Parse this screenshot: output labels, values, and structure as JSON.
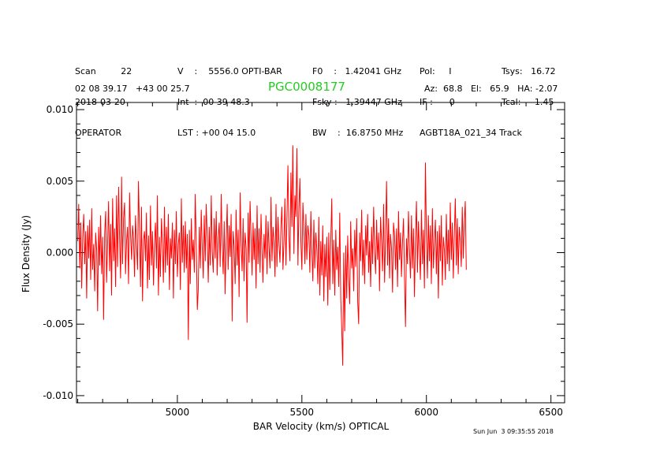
{
  "header": {
    "col1": [
      "Scan         22",
      "2018-03-20",
      "OPERATOR"
    ],
    "col2": [
      "V    :    5556.0 OPTI-BAR",
      "Int  :  00 39 48.3",
      "LST : +00 04 15.0"
    ],
    "col3": [
      "F0    :   1.42041 GHz",
      "Fsky :   1.39447 GHz",
      "BW    :  16.8750 MHz"
    ],
    "col4": [
      "Pol:     I",
      "IF :      0",
      "AGBT18A_021_34 Track"
    ],
    "col5": [
      "Tsys:   16.72",
      "Tcal:     1.45",
      ""
    ],
    "coords": "02 08 39.17   +43 00 25.7",
    "azel": "Az:  68.8   El:   65.9   HA: -2.07"
  },
  "timestamp": "Sun Jun  3 09:35:55 2018",
  "chart_data": {
    "type": "line",
    "title": "PGC0008177",
    "xlabel": "BAR Velocity (km/s) OPTICAL",
    "ylabel": "Flux Density (Jy)",
    "xlim": [
      4595,
      6555
    ],
    "ylim": [
      -0.0105,
      0.0105
    ],
    "xticks": [
      5000,
      5500,
      6000,
      6500
    ],
    "xtick_labels": [
      "5000",
      "5500",
      "6000",
      "6500"
    ],
    "yticks": [
      -0.01,
      -0.005,
      0.0,
      0.005,
      0.01
    ],
    "ytick_labels": [
      "-0.010",
      "-0.005",
      "0.000",
      "0.005",
      "0.010"
    ],
    "series": [
      {
        "name": "spectrum",
        "color": "#ff0000",
        "x_start": 4600,
        "x_step": 4,
        "values": [
          0.0008,
          0.0034,
          -0.0011,
          0.0021,
          -0.0025,
          0.0012,
          0.0027,
          -0.0008,
          0.0015,
          -0.0032,
          0.0019,
          -0.0004,
          0.0023,
          -0.0019,
          0.0031,
          -0.0012,
          0.0006,
          -0.0027,
          0.0014,
          0.0002,
          -0.0041,
          0.0018,
          -0.0009,
          0.0026,
          -0.0015,
          0.0011,
          -0.0047,
          0.0013,
          0.0029,
          -0.0021,
          0.0007,
          0.0036,
          -0.0013,
          0.002,
          -0.003,
          0.0038,
          -0.0006,
          0.0017,
          -0.0024,
          0.004,
          -0.001,
          0.0046,
          0.0011,
          -0.0018,
          0.0053,
          -0.0008,
          0.0024,
          0.0035,
          -0.0015,
          0.0008,
          0.0018,
          -0.0022,
          0.0042,
          0.0013,
          -0.0005,
          0.0019,
          0.001,
          -0.0017,
          0.0026,
          0.0006,
          -0.0012,
          0.005,
          0.0015,
          -0.0024,
          0.0032,
          -0.0034,
          0.0009,
          0.0015,
          -0.0006,
          0.0028,
          -0.0025,
          0.0012,
          -0.0019,
          0.0033,
          -0.0009,
          0.0015,
          -0.0023,
          0.0007,
          0.0021,
          -0.0011,
          0.004,
          -0.003,
          0.0011,
          -0.0017,
          0.0024,
          0.0005,
          -0.0021,
          0.0032,
          -0.0014,
          0.0018,
          -0.0009,
          0.0027,
          -0.0026,
          0.001,
          -0.0004,
          0.0021,
          -0.0032,
          0.0016,
          -0.0008,
          0.0029,
          -0.0017,
          0.0006,
          0.0014,
          -0.0026,
          0.0038,
          -0.0007,
          0.0019,
          -0.0014,
          0.0022,
          -0.0011,
          0.0013,
          -0.0061,
          0.0016,
          -0.0022,
          0.0024,
          -0.0005,
          0.0009,
          -0.0014,
          0.0041,
          0.0006,
          -0.004,
          -0.0026,
          0.0018,
          -0.0011,
          0.003,
          0.0003,
          -0.0018,
          0.0026,
          -0.0006,
          0.0034,
          0.0011,
          -0.0021,
          0.0018,
          -0.0009,
          0.004,
          0.0001,
          -0.0014,
          0.0024,
          -0.0004,
          0.0029,
          -0.0016,
          0.001,
          0.0021,
          -0.001,
          0.0041,
          0.0005,
          -0.0015,
          0.0022,
          -0.0029,
          0.0008,
          0.0034,
          -0.0012,
          0.0019,
          -0.0003,
          0.0027,
          -0.0048,
          0.0015,
          0.0004,
          -0.0022,
          0.003,
          -0.0009,
          0.0016,
          -0.0031,
          0.0042,
          0.0006,
          -0.0013,
          0.0024,
          -0.002,
          0.0014,
          0.0003,
          -0.0049,
          0.0028,
          -0.0007,
          0.0036,
          0.001,
          -0.0016,
          0.0021,
          -0.0005,
          0.0017,
          -0.0025,
          0.0033,
          -0.0008,
          0.0017,
          -0.0014,
          0.0027,
          0.0001,
          -0.0021,
          0.0013,
          -0.0004,
          0.0026,
          -0.0015,
          0.0022,
          0.0004,
          -0.0011,
          0.0039,
          -0.0006,
          0.0018,
          0.0008,
          -0.0017,
          0.0034,
          -0.001,
          0.0025,
          0.0006,
          -0.0007,
          0.0019,
          0.0032,
          -0.0012,
          0.0008,
          0.0038,
          -0.0009,
          0.0026,
          0.0061,
          0.0011,
          -0.0006,
          0.0056,
          0.0018,
          0.0075,
          -0.0001,
          0.004,
          0.0025,
          0.0073,
          -0.0009,
          0.003,
          0.0052,
          0.0007,
          -0.0012,
          0.0035,
          0.0018,
          -0.0008,
          0.0027,
          -0.0005,
          0.0019,
          0.0012,
          -0.0014,
          0.0029,
          0.0003,
          -0.002,
          0.0023,
          -0.0011,
          0.0014,
          0.0002,
          -0.0022,
          0.0025,
          -0.003,
          0.0008,
          -0.0016,
          0.0019,
          -0.0034,
          0.0006,
          -0.0017,
          0.0011,
          -0.0037,
          0.0014,
          -0.0026,
          0.0007,
          0.0038,
          -0.0022,
          0.0009,
          -0.003,
          0.0016,
          -0.0012,
          0.0004,
          -0.0024,
          0.0028,
          -0.0032,
          -0.0052,
          -0.0079,
          0.0,
          -0.0055,
          0.0005,
          -0.0032,
          0.0012,
          -0.0018,
          -0.0036,
          0.0022,
          -0.0011,
          0.0003,
          -0.0027,
          0.0016,
          -0.001,
          0.0024,
          -0.0034,
          -0.005,
          0.0014,
          -0.0006,
          0.003,
          -0.0016,
          0.0009,
          -0.0022,
          0.0019,
          -0.0002,
          0.0027,
          -0.0014,
          0.0008,
          -0.0024,
          0.0018,
          -0.0008,
          0.0032,
          0.0002,
          -0.0015,
          0.0023,
          -0.0005,
          0.0014,
          -0.0027,
          0.0025,
          0.0007,
          -0.0013,
          0.0034,
          -0.0021,
          0.001,
          0.005,
          -0.0009,
          0.0024,
          -0.0018,
          0.0013,
          0.0003,
          -0.0028,
          0.0021,
          0.0012,
          -0.0012,
          0.0017,
          -0.0024,
          0.0029,
          -0.0005,
          0.0014,
          -0.0017,
          0.0007,
          0.0024,
          -0.0016,
          -0.0052,
          0.001,
          -0.0008,
          0.0029,
          0.0003,
          -0.0018,
          0.0026,
          -0.0011,
          0.0017,
          -0.0031,
          0.0009,
          0.0036,
          -0.0014,
          0.0022,
          0.0002,
          -0.0019,
          0.003,
          -0.0008,
          0.0016,
          -0.0025,
          0.0063,
          0.0012,
          -0.0018,
          0.0026,
          -0.0006,
          0.0019,
          -0.0022,
          0.0031,
          -0.0011,
          0.0007,
          0.0023,
          -0.0015,
          0.0015,
          -0.0032,
          0.0019,
          -0.0006,
          0.0026,
          -0.0023,
          0.0011,
          0.0002,
          -0.0019,
          0.0027,
          -0.0008,
          0.0016,
          -0.0013,
          0.0035,
          -0.0005,
          0.0021,
          -0.0018,
          0.0012,
          0.0038,
          -0.0009,
          0.0024,
          -0.0015,
          0.0018,
          0.0008,
          -0.001,
          0.0032,
          -0.0004,
          0.002,
          0.0036,
          -0.0012
        ]
      }
    ]
  }
}
